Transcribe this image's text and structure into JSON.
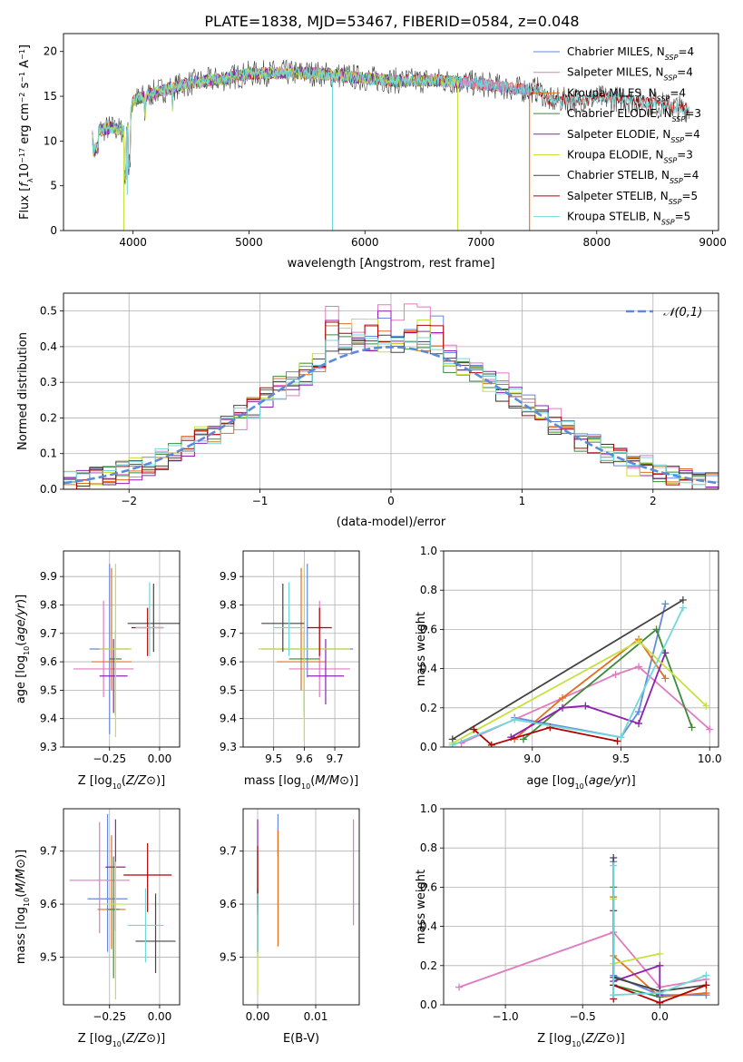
{
  "figure": {
    "title": "PLATE=1838, MJD=53467, FIBERID=0584, z=0.048"
  },
  "colors": {
    "Chabrier MILES": "#6688dd",
    "Salpeter MILES": "#e07bbf",
    "Kroupa MILES": "#e07020",
    "Chabrier ELODIE": "#3a8a3a",
    "Salpeter ELODIE": "#9020b0",
    "Kroupa ELODIE": "#c8e040",
    "Chabrier STELIB": "#444444",
    "Salpeter STELIB": "#b00000",
    "Kroupa STELIB": "#70d8d8",
    "normal": "#5b8bd8"
  },
  "chart_data": [
    {
      "id": "spectrum",
      "type": "line",
      "title": "PLATE=1838, MJD=53467, FIBERID=0584, z=0.048",
      "xlabel": "wavelength [Angstrom, rest frame]",
      "ylabel": "Flux [f_λ 10^-17 erg cm^-2 s^-1 A^-1]",
      "xlim": [
        3400,
        9050
      ],
      "ylim": [
        0,
        22
      ],
      "xticks": [
        4000,
        5000,
        6000,
        7000,
        8000,
        9000
      ],
      "yticks": [
        0,
        5,
        10,
        15,
        20
      ],
      "legend_position": "top-right",
      "legend": [
        {
          "name": "Chabrier MILES",
          "nssp": "4"
        },
        {
          "name": "Salpeter MILES",
          "nssp": "4"
        },
        {
          "name": "Kroupa MILES",
          "nssp": "4"
        },
        {
          "name": "Chabrier ELODIE",
          "nssp": "3"
        },
        {
          "name": "Salpeter ELODIE",
          "nssp": "4"
        },
        {
          "name": "Kroupa ELODIE",
          "nssp": "3"
        },
        {
          "name": "Chabrier STELIB",
          "nssp": "4"
        },
        {
          "name": "Salpeter STELIB",
          "nssp": "5"
        },
        {
          "name": "Kroupa STELIB",
          "nssp": "5"
        }
      ],
      "continuum": {
        "x": [
          3650,
          3800,
          3950,
          4000,
          4200,
          4500,
          4800,
          5000,
          5200,
          5500,
          5800,
          6000,
          6300,
          6600,
          6900,
          7100,
          7300,
          7500,
          7600,
          7800,
          8000,
          8200,
          8500,
          8800
        ],
        "y": [
          11,
          11.5,
          11,
          14.5,
          15.5,
          16.5,
          17,
          17.5,
          17.6,
          17.6,
          17.3,
          17,
          16.7,
          16.8,
          16.5,
          16.2,
          15.8,
          15.7,
          14.5,
          14.6,
          14.8,
          14.7,
          14.2,
          13.5
        ]
      },
      "drops": [
        {
          "series": "Kroupa ELODIE",
          "x": 3920,
          "to": 0
        },
        {
          "series": "Kroupa STELIB",
          "x": 3950,
          "to": 4
        },
        {
          "series": "Kroupa STELIB",
          "x": 5720,
          "to": 0
        },
        {
          "series": "Kroupa ELODIE",
          "x": 6800,
          "to": 0
        },
        {
          "series": "Kroupa MILES",
          "x": 7420,
          "to": 0
        }
      ]
    },
    {
      "id": "residuals",
      "type": "histogram",
      "xlabel": "(data-model)/error",
      "ylabel": "Normed distribution",
      "xlim": [
        -2.5,
        2.5
      ],
      "ylim": [
        0,
        0.55
      ],
      "xticks": [
        -2,
        -1,
        0,
        1,
        2
      ],
      "yticks": [
        0,
        0.1,
        0.2,
        0.3,
        0.4,
        0.5
      ],
      "grid": true,
      "legend_position": "top-right",
      "reference_curve": {
        "label": "𝒩(0,1)",
        "mean": 0,
        "sigma": 1
      },
      "bin_width": 0.1,
      "series": [
        {
          "name": "Chabrier MILES",
          "peak": 0.5,
          "offset": 0.05
        },
        {
          "name": "Salpeter MILES",
          "peak": 0.52,
          "offset": 0.15
        },
        {
          "name": "Kroupa MILES",
          "peak": 0.48,
          "offset": 0.0
        },
        {
          "name": "Chabrier ELODIE",
          "peak": 0.45,
          "offset": -0.1
        },
        {
          "name": "Salpeter ELODIE",
          "peak": 0.5,
          "offset": 0.1
        },
        {
          "name": "Kroupa ELODIE",
          "peak": 0.5,
          "offset": -0.15
        },
        {
          "name": "Chabrier STELIB",
          "peak": 0.44,
          "offset": -0.05
        },
        {
          "name": "Salpeter STELIB",
          "peak": 0.47,
          "offset": 0.0
        },
        {
          "name": "Kroupa STELIB",
          "peak": 0.44,
          "offset": 0.05
        }
      ]
    },
    {
      "id": "age_vs_z",
      "type": "errorbar",
      "xlabel": "Z [log10(Z/Z⊙)]",
      "ylabel": "age  [log10(age/yr)]",
      "xlim": [
        -0.48,
        0.1
      ],
      "ylim": [
        9.3,
        9.99
      ],
      "xticks": [
        -0.25,
        0.0
      ],
      "xticklabels": [
        "−0.25",
        "0.00"
      ],
      "yticks": [
        9.3,
        9.4,
        9.5,
        9.6,
        9.7,
        9.8,
        9.9
      ],
      "grid": true,
      "points": [
        {
          "series": "Chabrier MILES",
          "x": -0.25,
          "y": 9.645,
          "xerr": 0.1,
          "yerr": [
            0.3,
            0.3
          ]
        },
        {
          "series": "Salpeter MILES",
          "x": -0.28,
          "y": 9.575,
          "xerr": 0.15,
          "yerr": [
            0.1,
            0.24
          ]
        },
        {
          "series": "Kroupa MILES",
          "x": -0.24,
          "y": 9.6,
          "xerr": 0.1,
          "yerr": [
            0.1,
            0.33
          ]
        },
        {
          "series": "Chabrier ELODIE",
          "x": -0.22,
          "y": 9.61,
          "xerr": 0.03,
          "yerr": [
            0.2,
            0.1
          ]
        },
        {
          "series": "Salpeter ELODIE",
          "x": -0.23,
          "y": 9.55,
          "xerr": 0.07,
          "yerr": [
            0.13,
            0.13
          ]
        },
        {
          "series": "Kroupa ELODIE",
          "x": -0.22,
          "y": 9.645,
          "xerr": 0.08,
          "yerr": [
            0.31,
            0.3
          ]
        },
        {
          "series": "Chabrier STELIB",
          "x": -0.03,
          "y": 9.735,
          "xerr": 0.13,
          "yerr": [
            0.1,
            0.14
          ]
        },
        {
          "series": "Salpeter STELIB",
          "x": -0.06,
          "y": 9.72,
          "xerr": 0.08,
          "yerr": [
            0.1,
            0.07
          ]
        },
        {
          "series": "Kroupa STELIB",
          "x": -0.05,
          "y": 9.72,
          "xerr": 0.07,
          "yerr": [
            0.1,
            0.16
          ]
        }
      ]
    },
    {
      "id": "age_vs_mass",
      "type": "errorbar",
      "xlabel": "mass [log10(M/M⊙)]",
      "xlim": [
        9.4,
        9.78
      ],
      "ylim": [
        9.3,
        9.99
      ],
      "xticks": [
        9.5,
        9.6,
        9.7
      ],
      "yticks": [
        9.3,
        9.4,
        9.5,
        9.6,
        9.7,
        9.8,
        9.9
      ],
      "grid": true,
      "points": [
        {
          "series": "Chabrier MILES",
          "x": 9.61,
          "y": 9.645,
          "xerr": 0.15,
          "yerr": [
            0.1,
            0.3
          ]
        },
        {
          "series": "Salpeter MILES",
          "x": 9.65,
          "y": 9.575,
          "xerr": 0.1,
          "yerr": [
            0.1,
            0.24
          ]
        },
        {
          "series": "Kroupa MILES",
          "x": 9.59,
          "y": 9.6,
          "xerr": 0.08,
          "yerr": [
            0.1,
            0.33
          ]
        },
        {
          "series": "Chabrier ELODIE",
          "x": 9.6,
          "y": 9.61,
          "xerr": 0.05,
          "yerr": [
            0.2,
            0.1
          ]
        },
        {
          "series": "Salpeter ELODIE",
          "x": 9.67,
          "y": 9.55,
          "xerr": 0.06,
          "yerr": [
            0.1,
            0.13
          ]
        },
        {
          "series": "Kroupa ELODIE",
          "x": 9.6,
          "y": 9.645,
          "xerr": 0.15,
          "yerr": [
            0.33,
            0.3
          ]
        },
        {
          "series": "Chabrier STELIB",
          "x": 9.53,
          "y": 9.735,
          "xerr": 0.07,
          "yerr": [
            0.1,
            0.14
          ]
        },
        {
          "series": "Salpeter STELIB",
          "x": 9.65,
          "y": 9.72,
          "xerr": 0.04,
          "yerr": [
            0.1,
            0.07
          ]
        },
        {
          "series": "Kroupa STELIB",
          "x": 9.55,
          "y": 9.72,
          "xerr": 0.05,
          "yerr": [
            0.1,
            0.16
          ]
        }
      ]
    },
    {
      "id": "weight_vs_age",
      "type": "line",
      "xlabel": "age  [log10(age/yr)]",
      "ylabel": "mass weight",
      "xlim": [
        8.5,
        10.05
      ],
      "ylim": [
        0,
        1.0
      ],
      "xticks": [
        9.0,
        9.5,
        10.0
      ],
      "yticks": [
        0,
        0.2,
        0.4,
        0.6,
        0.8,
        1.0
      ],
      "grid": true,
      "series": [
        {
          "name": "Chabrier MILES",
          "x": [
            8.9,
            9.5,
            9.6,
            9.75
          ],
          "y": [
            0.15,
            0.05,
            0.18,
            0.73
          ]
        },
        {
          "name": "Salpeter MILES",
          "x": [
            8.6,
            9.47,
            9.6,
            10.0
          ],
          "y": [
            0.02,
            0.37,
            0.41,
            0.09
          ]
        },
        {
          "name": "Kroupa MILES",
          "x": [
            8.9,
            9.17,
            9.6,
            9.75
          ],
          "y": [
            0.04,
            0.25,
            0.55,
            0.35
          ]
        },
        {
          "name": "Chabrier ELODIE",
          "x": [
            8.95,
            9.7,
            9.9
          ],
          "y": [
            0.04,
            0.6,
            0.1
          ]
        },
        {
          "name": "Salpeter ELODIE",
          "x": [
            8.88,
            9.17,
            9.3,
            9.6,
            9.75
          ],
          "y": [
            0.05,
            0.2,
            0.21,
            0.12,
            0.48
          ]
        },
        {
          "name": "Kroupa ELODIE",
          "x": [
            8.55,
            9.6,
            9.98
          ],
          "y": [
            0.02,
            0.54,
            0.21
          ]
        },
        {
          "name": "Chabrier STELIB",
          "x": [
            8.55,
            9.85
          ],
          "y": [
            0.04,
            0.75
          ]
        },
        {
          "name": "Salpeter STELIB",
          "x": [
            8.67,
            8.77,
            9.1,
            9.48
          ],
          "y": [
            0.09,
            0.01,
            0.1,
            0.03
          ]
        },
        {
          "name": "Kroupa STELIB",
          "x": [
            8.55,
            8.9,
            9.5,
            9.85
          ],
          "y": [
            0.01,
            0.14,
            0.05,
            0.71
          ]
        }
      ]
    },
    {
      "id": "mass_vs_z",
      "type": "errorbar",
      "xlabel": "Z [log10(Z/Z⊙)]",
      "ylabel": "mass [log10(M/M⊙)]",
      "xlim": [
        -0.48,
        0.1
      ],
      "ylim": [
        9.41,
        9.78
      ],
      "xticks": [
        -0.25,
        0.0
      ],
      "xticklabels": [
        "−0.25",
        "0.00"
      ],
      "yticks": [
        9.5,
        9.6,
        9.7
      ],
      "grid": true,
      "points": [
        {
          "series": "Chabrier MILES",
          "x": -0.26,
          "y": 9.61,
          "xerr": 0.1,
          "yerr": [
            0.1,
            0.16
          ]
        },
        {
          "series": "Salpeter MILES",
          "x": -0.3,
          "y": 9.645,
          "xerr": 0.15,
          "yerr": [
            0.1,
            0.11
          ]
        },
        {
          "series": "Kroupa MILES",
          "x": -0.24,
          "y": 9.59,
          "xerr": 0.07,
          "yerr": [
            0.075,
            0.14
          ]
        },
        {
          "series": "Chabrier ELODIE",
          "x": -0.23,
          "y": 9.59,
          "xerr": 0.03,
          "yerr": [
            0.13,
            0.1
          ]
        },
        {
          "series": "Salpeter ELODIE",
          "x": -0.22,
          "y": 9.67,
          "xerr": 0.05,
          "yerr": [
            0.12,
            0.09
          ]
        },
        {
          "series": "Kroupa ELODIE",
          "x": -0.22,
          "y": 9.6,
          "xerr": 0.05,
          "yerr": [
            0.18,
            0.08
          ]
        },
        {
          "series": "Chabrier STELIB",
          "x": -0.02,
          "y": 9.53,
          "xerr": 0.1,
          "yerr": [
            0.06,
            0.09
          ]
        },
        {
          "series": "Salpeter STELIB",
          "x": -0.06,
          "y": 9.655,
          "xerr": 0.12,
          "yerr": [
            0.07,
            0.06
          ]
        },
        {
          "series": "Kroupa STELIB",
          "x": -0.07,
          "y": 9.56,
          "xerr": 0.09,
          "yerr": [
            0.07,
            0.07
          ]
        }
      ]
    },
    {
      "id": "mass_vs_ebv",
      "type": "errorbar",
      "xlabel": "E(B-V)",
      "xlim": [
        -0.0025,
        0.0175
      ],
      "ylim": [
        9.41,
        9.78
      ],
      "xticks": [
        0.0,
        0.01
      ],
      "xticklabels": [
        "0.00",
        "0.01"
      ],
      "yticks": [
        9.5,
        9.6,
        9.7
      ],
      "grid": true,
      "points": [
        {
          "series": "Chabrier MILES",
          "x": 0.0035,
          "y": 9.72,
          "xerr": 0,
          "yerr": [
            0.03,
            0.05
          ]
        },
        {
          "series": "Salpeter MILES",
          "x": 0.0165,
          "y": 9.66,
          "xerr": 0,
          "yerr": [
            0.1,
            0.1
          ]
        },
        {
          "series": "Kroupa MILES",
          "x": 0.0035,
          "y": 9.63,
          "xerr": 0,
          "yerr": [
            0.11,
            0.11
          ]
        },
        {
          "series": "Chabrier ELODIE",
          "x": 0.0,
          "y": 9.6,
          "xerr": 0,
          "yerr": [
            0.1,
            0.1
          ]
        },
        {
          "series": "Salpeter ELODIE",
          "x": 0.0,
          "y": 9.67,
          "xerr": 0,
          "yerr": [
            0.08,
            0.09
          ]
        },
        {
          "series": "Kroupa ELODIE",
          "x": 0.0,
          "y": 9.55,
          "xerr": 0,
          "yerr": [
            0.12,
            0.1
          ]
        },
        {
          "series": "Chabrier STELIB",
          "x": 0.0,
          "y": 9.56,
          "xerr": 0,
          "yerr": [
            0.05,
            0.07
          ]
        },
        {
          "series": "Salpeter STELIB",
          "x": 0.0,
          "y": 9.65,
          "xerr": 0,
          "yerr": [
            0.07,
            0.06
          ]
        },
        {
          "series": "Kroupa STELIB",
          "x": 0.0,
          "y": 9.56,
          "xerr": 0,
          "yerr": [
            0.05,
            0.06
          ]
        }
      ]
    },
    {
      "id": "weight_vs_z",
      "type": "line",
      "xlabel": "Z [log10(Z/Z⊙)]",
      "ylabel": "mass weight",
      "xlim": [
        -1.4,
        0.38
      ],
      "ylim": [
        0,
        1.0
      ],
      "xticks": [
        -1.0,
        -0.5,
        0.0
      ],
      "xticklabels": [
        "−1.0",
        "−0.5",
        "0.0"
      ],
      "yticks": [
        0,
        0.2,
        0.4,
        0.6,
        0.8,
        1.0
      ],
      "grid": true,
      "series": [
        {
          "name": "Chabrier MILES",
          "x": [
            -0.3,
            -0.3,
            0.0,
            0.3
          ],
          "y": [
            0.73,
            0.15,
            0.05,
            0.05
          ]
        },
        {
          "name": "Salpeter MILES",
          "x": [
            -1.3,
            -0.3,
            0.0,
            0.3
          ],
          "y": [
            0.09,
            0.37,
            0.09,
            0.13
          ]
        },
        {
          "name": "Kroupa MILES",
          "x": [
            -0.3,
            -0.3,
            0.0,
            0.3
          ],
          "y": [
            0.55,
            0.25,
            0.04,
            0.06
          ]
        },
        {
          "name": "Chabrier ELODIE",
          "x": [
            -0.3,
            -0.3,
            0.0
          ],
          "y": [
            0.6,
            0.1,
            0.04
          ]
        },
        {
          "name": "Salpeter ELODIE",
          "x": [
            -0.3,
            -0.3,
            0.0,
            0.0
          ],
          "y": [
            0.48,
            0.12,
            0.2,
            0.05
          ]
        },
        {
          "name": "Kroupa ELODIE",
          "x": [
            -0.3,
            -0.3,
            0.0
          ],
          "y": [
            0.54,
            0.21,
            0.26
          ]
        },
        {
          "name": "Chabrier STELIB",
          "x": [
            -0.3,
            -0.3,
            0.0,
            0.3
          ],
          "y": [
            0.75,
            0.14,
            0.07,
            0.1
          ]
        },
        {
          "name": "Salpeter STELIB",
          "x": [
            -0.3,
            -0.3,
            0.0,
            0.3
          ],
          "y": [
            0.03,
            0.1,
            0.01,
            0.1
          ]
        },
        {
          "name": "Kroupa STELIB",
          "x": [
            -0.3,
            -0.3,
            0.0,
            0.3
          ],
          "y": [
            0.71,
            0.05,
            0.06,
            0.15
          ]
        }
      ]
    }
  ]
}
